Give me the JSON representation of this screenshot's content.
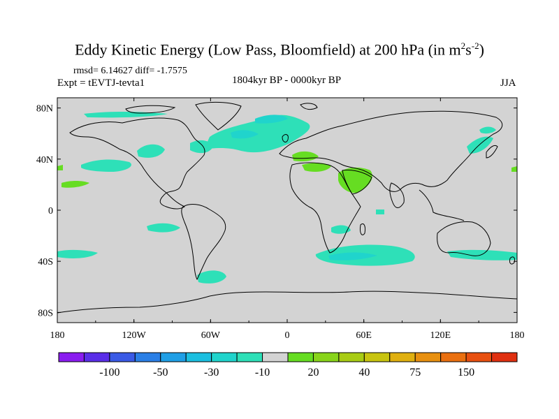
{
  "title": {
    "main": "Eddy Kinetic Energy (Low Pass, Bloomfield) at 200 hPa (in m",
    "sup1": "2",
    "mid": "s",
    "sup2": "-2",
    "end": ")"
  },
  "subtitle": {
    "stats": "rmsd= 6.14627 diff= -1.7575",
    "experiment": "Expt = tEVTJ-tevta1",
    "period": "1804kyr BP - 0000kyr BP",
    "season": "JJA"
  },
  "map": {
    "projection": "cylindrical equidistant",
    "ocean_land_background": "#d3d3d3",
    "x_ticks": [
      "180",
      "120W",
      "60W",
      "0",
      "60E",
      "120E",
      "180"
    ],
    "y_ticks": [
      "80N",
      "40N",
      "0",
      "40S",
      "80S"
    ],
    "regions": [
      {
        "name": "north-atlantic-band",
        "value_class": "-20 to -10"
      },
      {
        "name": "north-pacific-patches",
        "value_class": "-20 to -10"
      },
      {
        "name": "mediterranean",
        "value_class": "10 to 20"
      },
      {
        "name": "arabia",
        "value_class": "10 to 20"
      },
      {
        "name": "southern-ocean-indian",
        "value_class": "-20 to -10"
      },
      {
        "name": "southern-ocean-pacific",
        "value_class": "-20 to -10"
      }
    ]
  },
  "colorbar": {
    "colors": [
      "#8a1cf0",
      "#5a2ee8",
      "#3a5ae6",
      "#2a7fe6",
      "#1f9fe6",
      "#1bbfe0",
      "#20d4cc",
      "#2ee0b8",
      "#d3d3d3",
      "#66dd22",
      "#88d41a",
      "#a8cc14",
      "#c8c410",
      "#e0b010",
      "#e89010",
      "#ea7010",
      "#e85010",
      "#e03010"
    ],
    "labels": [
      {
        "text": "-100",
        "edge": 2
      },
      {
        "text": "-50",
        "edge": 4
      },
      {
        "text": "-30",
        "edge": 6
      },
      {
        "text": "-10",
        "edge": 8
      },
      {
        "text": "20",
        "edge": 10
      },
      {
        "text": "40",
        "edge": 12
      },
      {
        "text": "75",
        "edge": 14
      },
      {
        "text": "150",
        "edge": 16
      }
    ]
  }
}
